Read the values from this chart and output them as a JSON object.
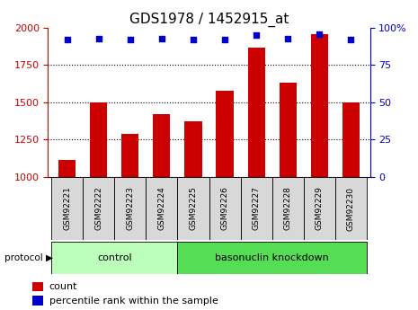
{
  "title": "GDS1978 / 1452915_at",
  "samples": [
    "GSM92221",
    "GSM92222",
    "GSM92223",
    "GSM92224",
    "GSM92225",
    "GSM92226",
    "GSM92227",
    "GSM92228",
    "GSM92229",
    "GSM92230"
  ],
  "counts": [
    1115,
    1500,
    1285,
    1420,
    1370,
    1580,
    1870,
    1630,
    1960,
    1500
  ],
  "percentile_ranks": [
    92,
    93,
    92,
    93,
    92,
    92,
    95,
    93,
    96,
    92
  ],
  "bar_color": "#cc0000",
  "dot_color": "#0000cc",
  "ylim_left": [
    1000,
    2000
  ],
  "ylim_right": [
    0,
    100
  ],
  "yticks_left": [
    1000,
    1250,
    1500,
    1750,
    2000
  ],
  "yticks_right": [
    0,
    25,
    50,
    75,
    100
  ],
  "right_tick_labels": [
    "0",
    "25",
    "50",
    "75",
    "100%"
  ],
  "grid_ticks": [
    1250,
    1500,
    1750
  ],
  "control_n": 4,
  "knockdown_n": 6,
  "protocol_label": "protocol",
  "control_label": "control",
  "knockdown_label": "basonuclin knockdown",
  "legend_count_label": "count",
  "legend_percentile_label": "percentile rank within the sample",
  "control_color": "#bbffbb",
  "knockdown_color": "#55dd55",
  "bar_axis_color": "#cc0000",
  "dot_axis_color": "#0000cc",
  "sample_box_color": "#d8d8d8",
  "title_fontsize": 11,
  "axis_tick_fontsize": 8,
  "sample_label_fontsize": 6.5,
  "protocol_fontsize": 7.5,
  "legend_fontsize": 8,
  "bar_width": 0.55
}
